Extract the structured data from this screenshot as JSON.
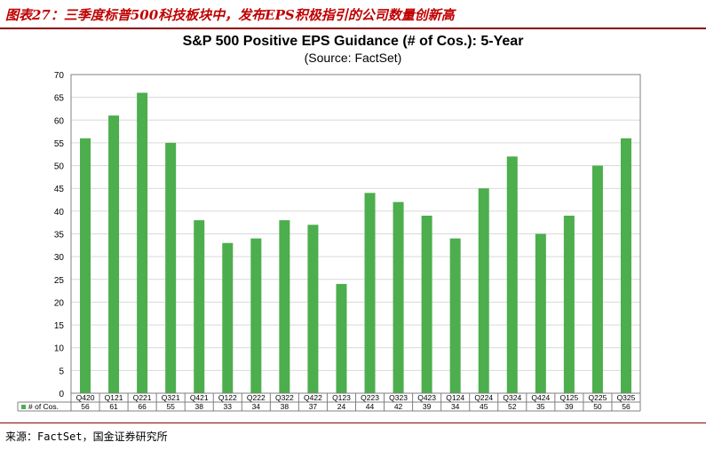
{
  "caption": "图表27：三季度标普500科技板块中，发布EPS积极指引的公司数量创新高",
  "source": "来源：FactSet，国金证券研究所",
  "colors": {
    "bar": "#4cae4c",
    "caption": "#c00000",
    "rule": "#8b0000",
    "grid": "#d9d9d9"
  },
  "chart_data": {
    "type": "bar",
    "title": "S&P 500 Positive EPS Guidance (# of Cos.): 5-Year",
    "subtitle": "(Source: FactSet)",
    "categories": [
      "Q420",
      "Q121",
      "Q221",
      "Q321",
      "Q421",
      "Q122",
      "Q222",
      "Q322",
      "Q422",
      "Q123",
      "Q223",
      "Q323",
      "Q423",
      "Q124",
      "Q224",
      "Q324",
      "Q424",
      "Q125",
      "Q225",
      "Q325"
    ],
    "series": [
      {
        "name": "# of Cos.",
        "values": [
          56,
          61,
          66,
          55,
          38,
          33,
          34,
          38,
          37,
          24,
          44,
          42,
          39,
          34,
          45,
          52,
          35,
          39,
          50,
          56
        ]
      }
    ],
    "yticks": [
      0,
      5,
      10,
      15,
      20,
      25,
      30,
      35,
      40,
      45,
      50,
      55,
      60,
      65,
      70
    ],
    "ylim": [
      0,
      70
    ],
    "grid": true,
    "legend": "data-table-left"
  }
}
